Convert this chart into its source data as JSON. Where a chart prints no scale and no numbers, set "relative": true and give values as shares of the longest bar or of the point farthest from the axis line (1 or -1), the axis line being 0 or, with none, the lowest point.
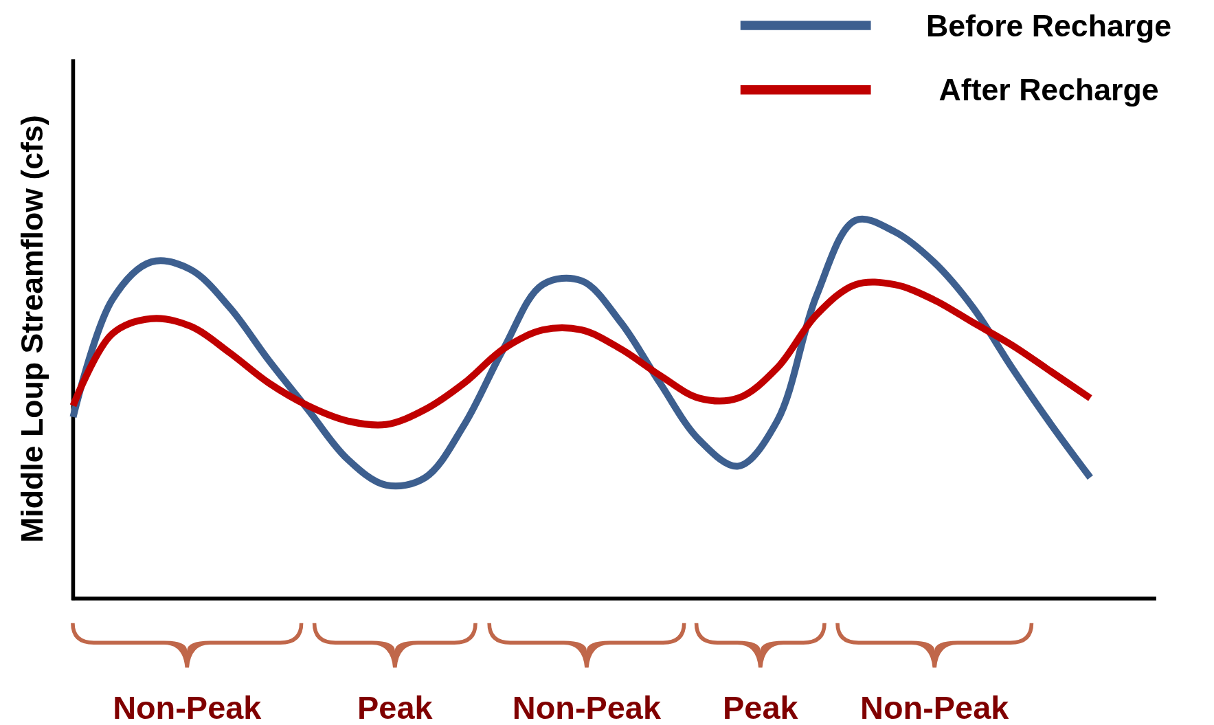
{
  "chart_data": {
    "type": "line",
    "relative": true,
    "ylabel": "Middle Loup Streamflow (cfs)",
    "legend": "top right",
    "marker": "none",
    "line_style": "solid",
    "categories": [
      null,
      null,
      null,
      null,
      null,
      null,
      null,
      null,
      null,
      null,
      null,
      null,
      null,
      null,
      null,
      null,
      null,
      null,
      null,
      null,
      null,
      null,
      null,
      null,
      null,
      null,
      null
    ],
    "series": [
      {
        "name": "Before Recharge",
        "color": "#3d5f8f",
        "values": [
          0.48,
          0.79,
          0.89,
          0.87,
          0.77,
          0.63,
          0.5,
          0.37,
          0.3,
          0.32,
          0.46,
          0.66,
          0.83,
          0.84,
          0.73,
          0.57,
          0.42,
          0.35,
          0.47,
          0.8,
          1,
          0.97,
          0.89,
          0.77,
          0.61,
          0.46,
          0.32
        ]
      },
      {
        "name": "After Recharge",
        "color": "#c00000",
        "values": [
          0.51,
          0.7,
          0.74,
          0.72,
          0.65,
          0.57,
          0.51,
          0.47,
          0.46,
          0.5,
          0.57,
          0.66,
          0.71,
          0.71,
          0.66,
          0.59,
          0.53,
          0.53,
          0.61,
          0.75,
          0.83,
          0.83,
          0.79,
          0.73,
          0.67,
          0.6,
          0.53
        ]
      }
    ],
    "annotations": [
      "Non-Peak",
      "Peak",
      "Non-Peak",
      "Peak",
      "Non-Peak"
    ]
  }
}
